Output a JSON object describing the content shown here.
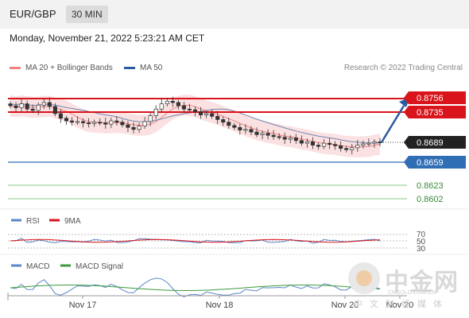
{
  "header": {
    "pair": "EUR/GBP",
    "timeframe": "30 MIN"
  },
  "datetime": "Monday, November 21, 2022 5:23:21 AM CET",
  "legend_main": [
    {
      "label": "MA 20 + Bollinger Bands",
      "color": "#f08080"
    },
    {
      "label": "MA 50",
      "color": "#2c5aa0"
    }
  ],
  "credit": "Research © 2022 Trading Central",
  "colors": {
    "resistance": "#d9141b",
    "support": "#2f6db5",
    "target_support": "#4caf50",
    "arrow": "#2c5aa0",
    "bb_fill": "#fadcdc"
  },
  "price_levels": [
    {
      "value": "0.8756",
      "type": "resistance"
    },
    {
      "value": "0.8735",
      "type": "resistance"
    },
    {
      "value": "0.8689",
      "type": "current"
    },
    {
      "value": "0.8659",
      "type": "pivot"
    },
    {
      "value": "0.8623",
      "type": "support"
    },
    {
      "value": "0.8602",
      "type": "support"
    }
  ],
  "rsi": {
    "legend": [
      {
        "label": "RSI",
        "color": "#5b86c6"
      },
      {
        "label": "9MA",
        "color": "#d9141b"
      }
    ],
    "levels": [
      "70",
      "50",
      "30"
    ]
  },
  "macd": {
    "legend": [
      {
        "label": "MACD",
        "color": "#5b86c6"
      },
      {
        "label": "MACD Signal",
        "color": "#3c9b3c"
      }
    ]
  },
  "x_labels": [
    "Nov 17",
    "Nov 18",
    "Nov 20",
    "Nov 20"
  ],
  "watermark": {
    "brand": "中金网",
    "url": "CNGOLD.COM.CN",
    "tagline": "中文财经媒体"
  },
  "chart_data": {
    "type": "candlestick",
    "title": "EUR/GBP",
    "timeframe": "30 MIN",
    "x_ticks": [
      "Nov 17",
      "Nov 18",
      "Nov 20",
      "Nov 20"
    ],
    "ylim": [
      0.859,
      0.877
    ],
    "series": [
      {
        "name": "EUR/GBP",
        "kind": "candles",
        "close_path": [
          0.8745,
          0.8742,
          0.8748,
          0.874,
          0.8738,
          0.8746,
          0.875,
          0.8744,
          0.8733,
          0.8726,
          0.8722,
          0.872,
          0.8721,
          0.8719,
          0.8718,
          0.872,
          0.8719,
          0.8717,
          0.8722,
          0.872,
          0.8716,
          0.8712,
          0.8709,
          0.8714,
          0.8721,
          0.873,
          0.874,
          0.8748,
          0.8752,
          0.875,
          0.8745,
          0.874,
          0.8739,
          0.8736,
          0.8731,
          0.8733,
          0.8729,
          0.8724,
          0.872,
          0.8715,
          0.8712,
          0.8708,
          0.8709,
          0.8705,
          0.8701,
          0.8703,
          0.87,
          0.8698,
          0.8697,
          0.8694,
          0.8696,
          0.8692,
          0.8688,
          0.869,
          0.8685,
          0.8683,
          0.8688,
          0.8686,
          0.8684,
          0.868,
          0.8678,
          0.8681,
          0.8685,
          0.8687,
          0.8688,
          0.869,
          0.8689
        ]
      },
      {
        "name": "MA 20 + Bollinger Bands",
        "kind": "band"
      },
      {
        "name": "MA 50",
        "kind": "line"
      }
    ],
    "levels": {
      "resistance": [
        0.8756,
        0.8735
      ],
      "last": 0.8689,
      "pivot": 0.8659,
      "support": [
        0.8623,
        0.8602
      ]
    },
    "forecast": {
      "direction": "up",
      "from": 0.8689,
      "to": 0.8756
    },
    "rsi_levels": [
      70,
      50,
      30
    ]
  }
}
